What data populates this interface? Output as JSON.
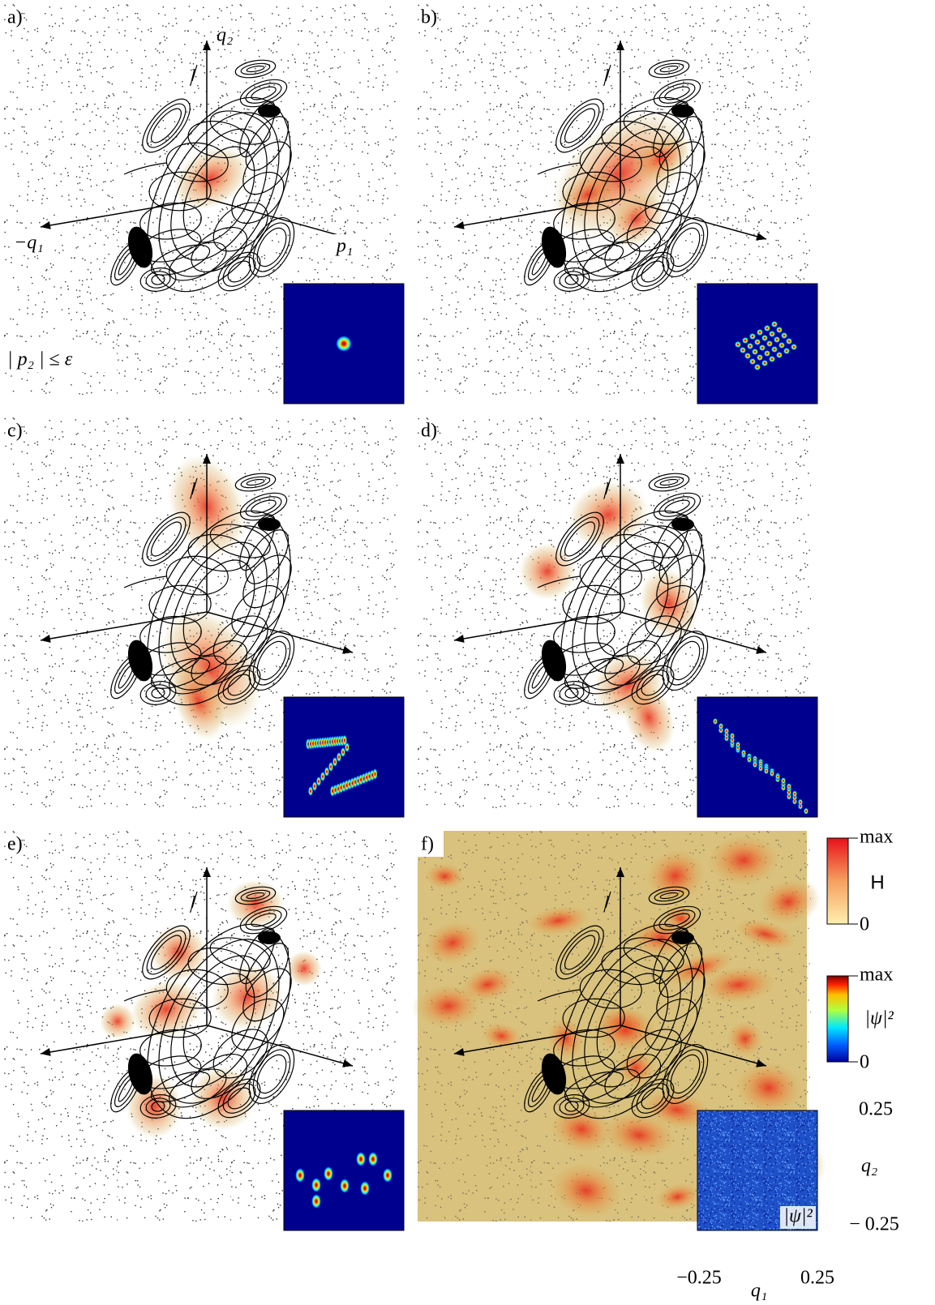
{
  "panels": [
    {
      "label": "a)"
    },
    {
      "label": "b)"
    },
    {
      "label": "c)"
    },
    {
      "label": "d)"
    },
    {
      "label": "e)"
    },
    {
      "label": "f)"
    }
  ],
  "axis_labels": {
    "q2": "q₂",
    "minus_q1": "−q₁",
    "p1": "p₁"
  },
  "condition": "| p₂ | ≤ ε",
  "colorbars": [
    {
      "top": "max",
      "name": "H",
      "bottom": "0"
    },
    {
      "top": "max",
      "name": "|ψ|²",
      "bottom": "0"
    }
  ],
  "inset_axes": {
    "y_top": "0.25",
    "y_label": "q₂",
    "y_bottom": "− 0.25",
    "x_left": "−0.25",
    "x_label": "q₁",
    "x_right": "0.25",
    "inset_label": "|ψ|²"
  }
}
